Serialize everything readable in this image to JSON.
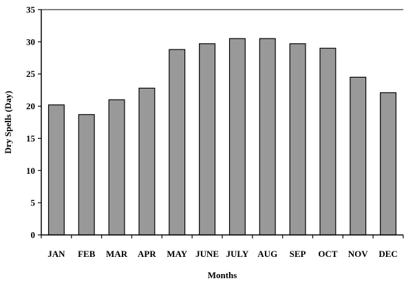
{
  "chart_data": {
    "type": "bar",
    "title": "",
    "categories": [
      "JAN",
      "FEB",
      "MAR",
      "APR",
      "MAY",
      "JUNE",
      "JULY",
      "AUG",
      "SEP",
      "OCT",
      "NOV",
      "DEC"
    ],
    "values": [
      20.2,
      18.7,
      21.0,
      22.8,
      28.8,
      29.7,
      30.5,
      30.5,
      29.7,
      29.0,
      24.5,
      22.1
    ],
    "xlabel": "Months",
    "ylabel": "Dry Spells (Day)",
    "ylim": [
      0,
      35
    ],
    "yticks": [
      0,
      5,
      10,
      15,
      20,
      25,
      30,
      35
    ],
    "grid": false,
    "legend": "none",
    "bar_color": "#999999",
    "bar_edge_color": "#000000"
  }
}
